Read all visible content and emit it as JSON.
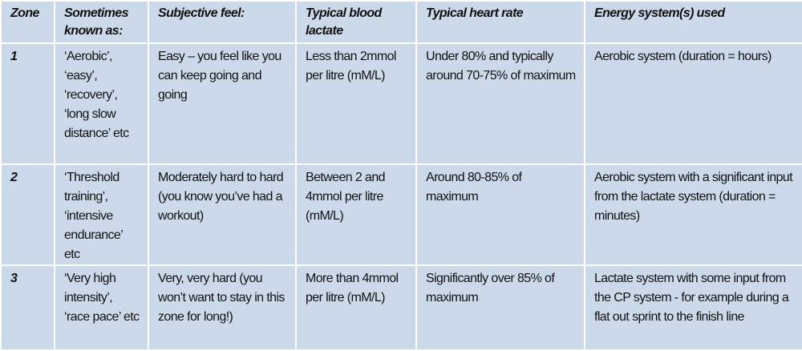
{
  "table": {
    "header": [
      "Zone",
      "Sometimes known as:",
      "Subjective feel:",
      "Typical blood lactate",
      "Typical heart rate",
      "Energy system(s) used"
    ],
    "rows": [
      [
        "1",
        "‘Aerobic’, ‘easy’, ‘recovery’, ‘long slow distance’ etc",
        "Easy – you feel like you can keep going and going",
        "Less than 2mmol per litre (mM/L)",
        "Under 80% and typically around 70-75% of maximum",
        "Aerobic system (duration = hours)"
      ],
      [
        "2",
        "‘Threshold training’, ‘intensive endurance’ etc",
        "Moderately hard to hard (you know you’ve had a workout)",
        "Between 2 and 4mmol per litre (mM/L)",
        "Around 80-85% of maximum",
        "Aerobic system with a significant input from the lactate system (duration = minutes)"
      ],
      [
        "3",
        "‘Very high intensity’, ‘race pace’ etc",
        "Very, very hard (you won’t want to stay in this zone for long!)",
        "More than 4mmol per litre (mM/L)",
        "Significantly over 85% of maximum",
        "Lactate system with some input from the CP system - for example during a flat out sprint to the finish line"
      ]
    ]
  }
}
